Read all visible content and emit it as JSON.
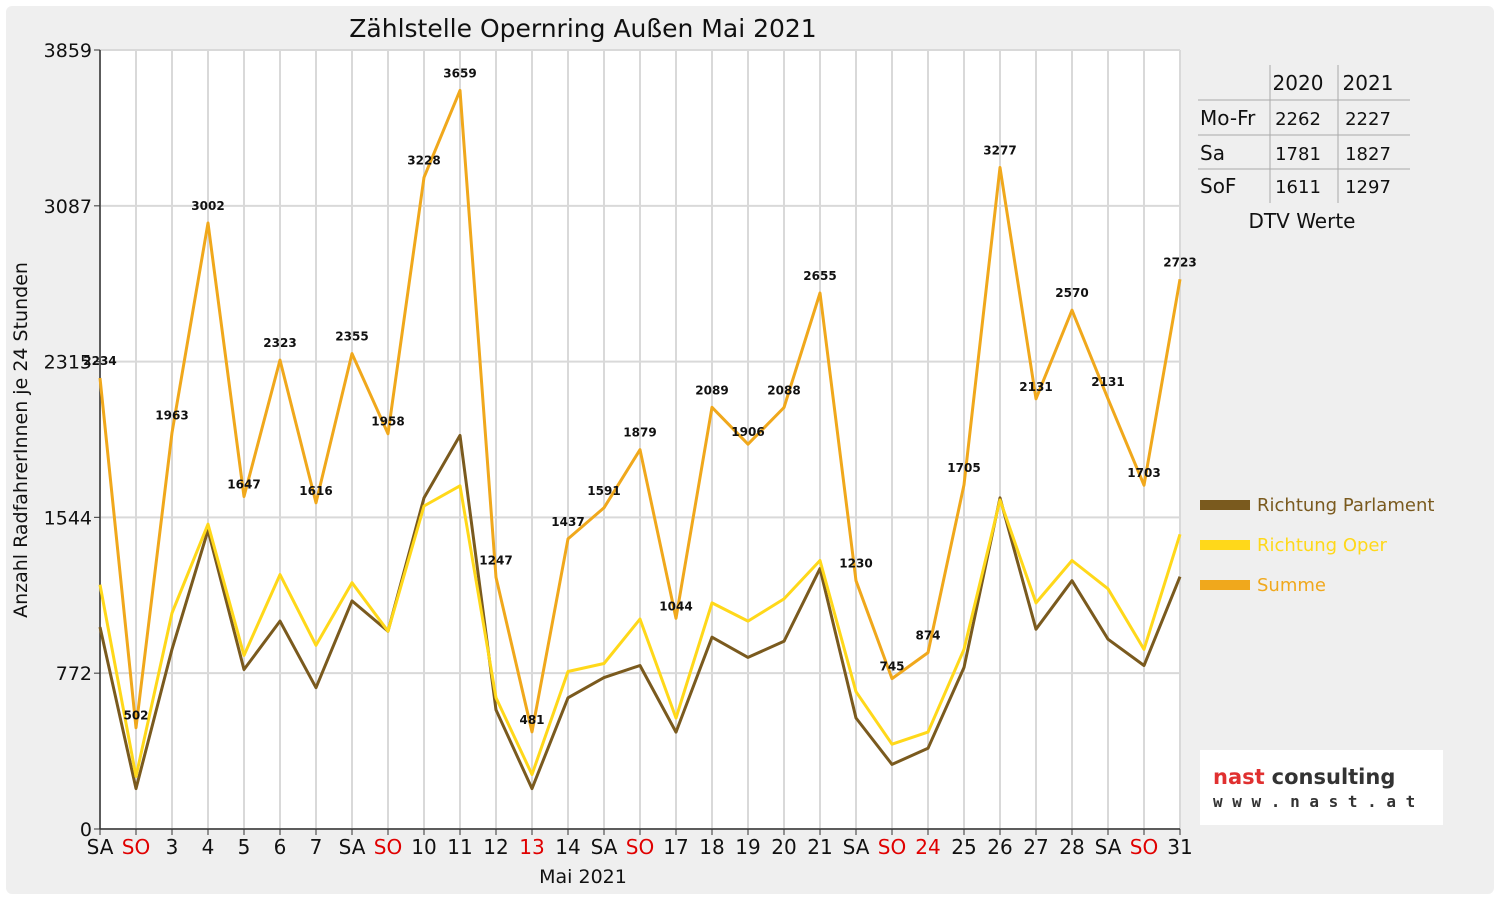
{
  "chart_data": {
    "type": "line",
    "title": "Zählstelle Opernring Außen Mai 2021",
    "xlabel": "Mai 2021",
    "ylabel": "Anzahl RadfahrerInnen je 24 Stunden",
    "ylim": [
      0,
      3859
    ],
    "yticks": [
      "0",
      "772",
      "1544",
      "2315",
      "3087",
      "3859"
    ],
    "grid": true,
    "legend_position": "right",
    "categories": [
      "SA",
      "SO",
      "3",
      "4",
      "5",
      "6",
      "7",
      "SA",
      "SO",
      "10",
      "11",
      "12",
      "13",
      "14",
      "SA",
      "SO",
      "17",
      "18",
      "19",
      "20",
      "21",
      "SA",
      "SO",
      "24",
      "25",
      "26",
      "27",
      "28",
      "SA",
      "SO",
      "31"
    ],
    "category_colors": [
      "#111111",
      "#e00000",
      "#111111",
      "#111111",
      "#111111",
      "#111111",
      "#111111",
      "#111111",
      "#e00000",
      "#111111",
      "#111111",
      "#111111",
      "#e00000",
      "#111111",
      "#111111",
      "#e00000",
      "#111111",
      "#111111",
      "#111111",
      "#111111",
      "#111111",
      "#111111",
      "#e00000",
      "#e00000",
      "#111111",
      "#111111",
      "#111111",
      "#111111",
      "#111111",
      "#e00000",
      "#111111"
    ],
    "series": [
      {
        "name": "Richtung Parlament",
        "color": "#7a5a1e",
        "values": [
          1000,
          200,
          890,
          1480,
          790,
          1030,
          700,
          1130,
          980,
          1640,
          1950,
          590,
          200,
          650,
          750,
          810,
          480,
          950,
          850,
          930,
          1290,
          550,
          320,
          400,
          800,
          1640,
          990,
          1230,
          940,
          810,
          1250
        ]
      },
      {
        "name": "Richtung Oper",
        "color": "#ffd81a",
        "values": [
          1210,
          260,
          1070,
          1510,
          860,
          1260,
          910,
          1220,
          980,
          1600,
          1700,
          650,
          270,
          780,
          820,
          1040,
          550,
          1120,
          1030,
          1140,
          1330,
          680,
          420,
          480,
          890,
          1630,
          1120,
          1330,
          1190,
          890,
          1460
        ]
      },
      {
        "name": "Summe",
        "color": "#f0a81c",
        "values": [
          2234,
          502,
          1963,
          3002,
          1647,
          2323,
          1616,
          2355,
          1958,
          3228,
          3659,
          1247,
          481,
          1437,
          1591,
          1879,
          1044,
          2089,
          1906,
          2088,
          2655,
          1230,
          745,
          874,
          1705,
          3277,
          2131,
          2570,
          2131,
          1703,
          2723
        ]
      }
    ],
    "data_labels": [
      "2234",
      "502",
      "1963",
      "3002",
      "1647",
      "2323",
      "1616",
      "2355",
      "1958",
      "3228",
      "3659",
      "1247",
      "481",
      "1437",
      "1591",
      "1879",
      "1044",
      "2089",
      "1906",
      "2088",
      "2655",
      "1230",
      "745",
      "874",
      "1705",
      "3277",
      "2131",
      "2570",
      "2131",
      "1703",
      "2723"
    ]
  },
  "dtv_table": {
    "headers": [
      "",
      "2020",
      "2021"
    ],
    "rows": [
      {
        "label": "Mo-Fr",
        "v2020": "2262",
        "v2021": "2227"
      },
      {
        "label": "Sa",
        "v2020": "1781",
        "v2021": "1827"
      },
      {
        "label": "SoF",
        "v2020": "1611",
        "v2021": "1297"
      }
    ],
    "caption": "DTV Werte"
  },
  "logo": {
    "word1": "nast",
    "word2": "consulting",
    "url": "w w w . n a s t . a t",
    "word1_color": "#e03030",
    "word2_color": "#333333"
  }
}
